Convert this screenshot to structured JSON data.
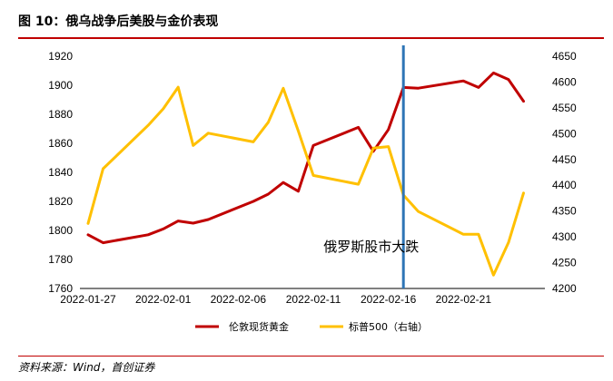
{
  "figure": {
    "title": "图 10：俄乌战争后美股与金价表现",
    "source": "资料来源：Wind，首创证券"
  },
  "colors": {
    "gold": "#c00000",
    "sp500": "#ffc000",
    "event_line": "#2e75b6",
    "accent_rule": "#c00000"
  },
  "chart_data": {
    "type": "line",
    "x_tick_labels": [
      "2022-01-27",
      "2022-02-01",
      "2022-02-06",
      "2022-02-11",
      "2022-02-16",
      "2022-02-21"
    ],
    "x_range": [
      "2022-01-27",
      "2022-02-26"
    ],
    "y_left": {
      "range": [
        1760,
        1920
      ],
      "ticks": [
        1760,
        1780,
        1800,
        1820,
        1840,
        1860,
        1880,
        1900,
        1920
      ]
    },
    "y_right": {
      "range": [
        4200,
        4650
      ],
      "ticks": [
        4200,
        4250,
        4300,
        4350,
        4400,
        4450,
        4500,
        4550,
        4600,
        4650
      ]
    },
    "series": [
      {
        "name": "伦敦现货黄金",
        "axis": "left",
        "points": [
          [
            "2022-01-27",
            1797
          ],
          [
            "2022-01-28",
            1791.5
          ],
          [
            "2022-01-31",
            1797
          ],
          [
            "2022-02-01",
            1801
          ],
          [
            "2022-02-02",
            1806.5
          ],
          [
            "2022-02-03",
            1805
          ],
          [
            "2022-02-04",
            1807.5
          ],
          [
            "2022-02-07",
            1820
          ],
          [
            "2022-02-08",
            1825
          ],
          [
            "2022-02-09",
            1833
          ],
          [
            "2022-02-10",
            1827
          ],
          [
            "2022-02-11",
            1858.5
          ],
          [
            "2022-02-14",
            1871
          ],
          [
            "2022-02-15",
            1854.5
          ],
          [
            "2022-02-16",
            1869.5
          ],
          [
            "2022-02-17",
            1898.5
          ],
          [
            "2022-02-18",
            1898
          ],
          [
            "2022-02-21",
            1903
          ],
          [
            "2022-02-22",
            1898.5
          ],
          [
            "2022-02-23",
            1908.5
          ],
          [
            "2022-02-24",
            1904
          ],
          [
            "2022-02-25",
            1889
          ]
        ]
      },
      {
        "name": "标普500（右轴）",
        "axis": "right",
        "points": [
          [
            "2022-01-27",
            4326
          ],
          [
            "2022-01-28",
            4432
          ],
          [
            "2022-01-31",
            4516
          ],
          [
            "2022-02-01",
            4548
          ],
          [
            "2022-02-02",
            4590
          ],
          [
            "2022-02-03",
            4477
          ],
          [
            "2022-02-04",
            4501
          ],
          [
            "2022-02-07",
            4484
          ],
          [
            "2022-02-08",
            4522
          ],
          [
            "2022-02-09",
            4588
          ],
          [
            "2022-02-10",
            4505
          ],
          [
            "2022-02-11",
            4419
          ],
          [
            "2022-02-14",
            4402
          ],
          [
            "2022-02-15",
            4472
          ],
          [
            "2022-02-16",
            4475
          ],
          [
            "2022-02-17",
            4381
          ],
          [
            "2022-02-18",
            4349
          ],
          [
            "2022-02-21",
            4305
          ],
          [
            "2022-02-22",
            4305
          ],
          [
            "2022-02-23",
            4226
          ],
          [
            "2022-02-24",
            4289
          ],
          [
            "2022-02-25",
            4385
          ]
        ]
      }
    ],
    "annotations": [
      {
        "type": "vline",
        "x": "2022-02-17"
      },
      {
        "type": "text",
        "text": "俄罗斯股市大跌",
        "x": "2022-02-17"
      }
    ],
    "legend_position": "bottom",
    "grid": false
  }
}
